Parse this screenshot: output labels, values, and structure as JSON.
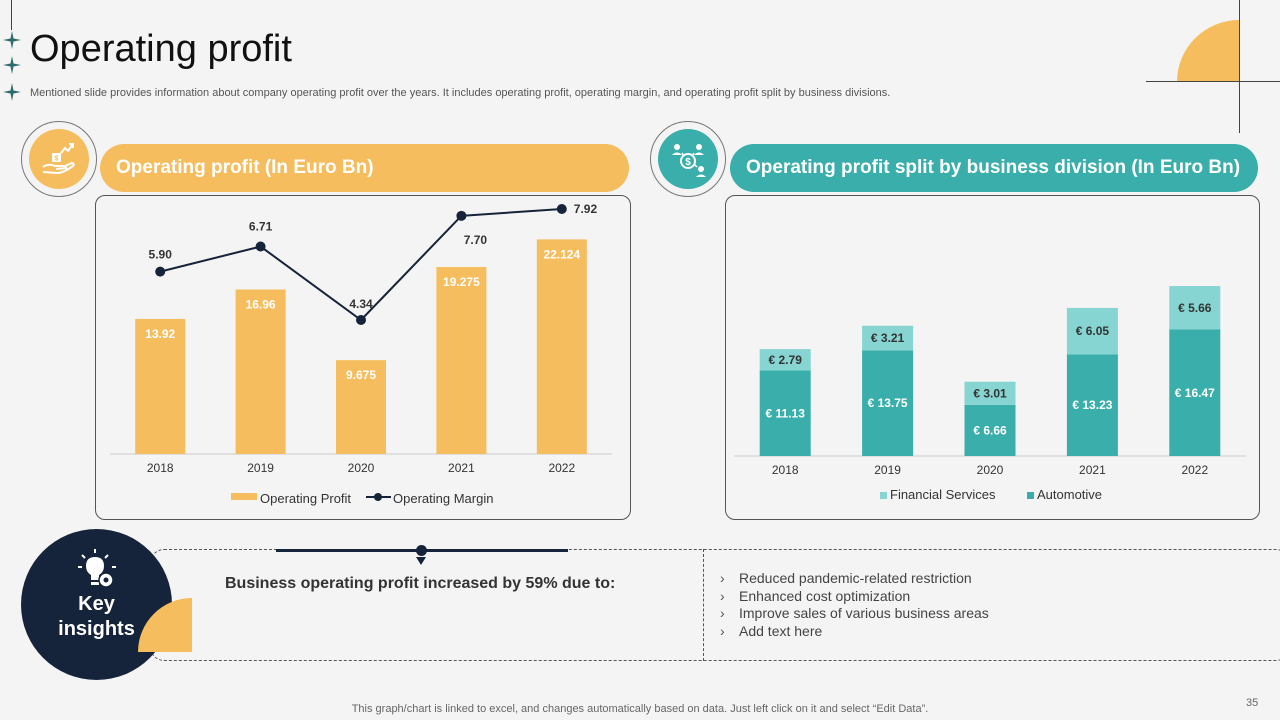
{
  "header": {
    "title": "Operating profit",
    "subtitle": "Mentioned slide provides information about company operating profit over the years. It includes operating profit, operating margin, and operating profit split by business divisions."
  },
  "left_panel": {
    "heading": "Operating profit (In Euro Bn)",
    "icon": "hand-money-growth-icon"
  },
  "right_panel": {
    "heading": "Operating profit split by business division (In Euro Bn)",
    "icon": "business-network-dollar-icon"
  },
  "chart_data": [
    {
      "type": "bar",
      "title": "Operating profit (In Euro Bn)",
      "categories": [
        "2018",
        "2019",
        "2020",
        "2021",
        "2022"
      ],
      "series": [
        {
          "name": "Operating Profit",
          "kind": "bar",
          "color": "#f5bd5d",
          "values": [
            13.92,
            16.96,
            9.675,
            19.275,
            22.124
          ],
          "labels": [
            "13.92",
            "16.96",
            "9.675",
            "19.275",
            "22.124"
          ]
        },
        {
          "name": "Operating Margin",
          "kind": "line",
          "color": "#15243a",
          "values": [
            5.9,
            6.71,
            4.34,
            7.7,
            7.92
          ],
          "labels": [
            "5.90",
            "6.71",
            "4.34",
            "7.70",
            "7.92"
          ]
        }
      ],
      "legend": [
        "Operating Profit",
        "Operating Margin"
      ],
      "legend_position": "bottom"
    },
    {
      "type": "bar",
      "stacked": true,
      "title": "Operating profit split by business division (In Euro Bn)",
      "categories": [
        "2018",
        "2019",
        "2020",
        "2021",
        "2022"
      ],
      "series": [
        {
          "name": "Automotive",
          "color": "#3aaeaa",
          "values": [
            11.13,
            13.75,
            6.66,
            13.23,
            16.47
          ],
          "labels": [
            "€ 11.13",
            "€ 13.75",
            "€ 6.66",
            "€ 13.23",
            "€ 16.47"
          ]
        },
        {
          "name": "Financial Services",
          "color": "#86d5d2",
          "values": [
            2.79,
            3.21,
            3.01,
            6.05,
            5.66
          ],
          "labels": [
            "€ 2.79",
            "€ 3.21",
            "€ 3.01",
            "€ 6.05",
            "€ 5.66"
          ]
        }
      ],
      "legend": [
        "Financial Services",
        "Automotive"
      ],
      "legend_position": "bottom"
    }
  ],
  "insights": {
    "label_line1": "Key",
    "label_line2": "insights",
    "headline": "Business operating profit increased by 59% due to:",
    "bullets": [
      "Reduced pandemic-related restriction",
      "Enhanced cost optimization",
      "Improve sales of various business areas",
      "Add text here"
    ],
    "bullet_marker": "›"
  },
  "footer": {
    "note": "This graph/chart is linked to excel,  and changes automatically based on data. Just left click on it and select “Edit Data”.",
    "page_number": "35"
  },
  "colors": {
    "accent_orange": "#f5bd5d",
    "accent_teal": "#3aaeaa",
    "light_teal": "#86d5d2",
    "navy": "#15243a"
  }
}
